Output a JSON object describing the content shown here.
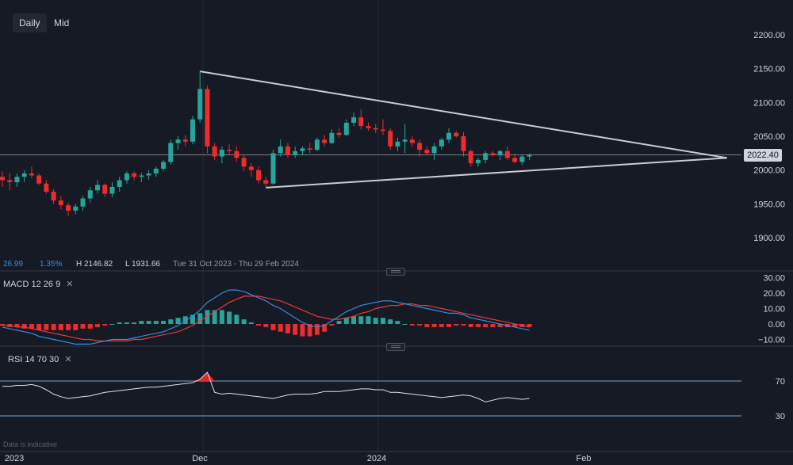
{
  "toolbar": {
    "daily_label": "Daily",
    "mid_label": "Mid"
  },
  "stats": {
    "chg": "26.99",
    "chg_pct": "1.35%",
    "high": "H 2146.82",
    "low": "L 1931.66",
    "range": "Tue 31 Oct 2023 - Thu 29 Feb 2024"
  },
  "price_tag": "2022.40",
  "colors": {
    "up": "#26a69a",
    "down": "#ef2b2b",
    "macd_line": "#2f8fe6",
    "signal_line": "#e83a3a",
    "rsi": "#e0e3eb",
    "level": "#6ba9cf",
    "trendline": "#c9ccd3",
    "background": "#161a25"
  },
  "indicators": {
    "macd": {
      "name": "MACD",
      "p1": "12",
      "p2": "26",
      "p3": "9",
      "close": "✕"
    },
    "rsi": {
      "name": "RSI",
      "p1": "14",
      "p2": "70",
      "p3": "30",
      "close": "✕"
    }
  },
  "footnote": "Data is indicative",
  "chart_data": [
    {
      "type": "candlestick",
      "title": "",
      "x_ticks": [
        "2023",
        "Dec",
        "2024",
        "Feb"
      ],
      "y_ticks": [
        2200,
        2150,
        2100,
        2050,
        2000,
        1950,
        1900
      ],
      "y_tick_labels": [
        "2200.00",
        "2150.00",
        "2100.00",
        "2050.00",
        "2000.00",
        "1950.00",
        "1900.00"
      ],
      "ylim": [
        1870,
        2230
      ],
      "last_price": 2022.4,
      "ohlc": [
        [
          1990,
          1998,
          1975,
          1985
        ],
        [
          1985,
          1995,
          1970,
          1982
        ],
        [
          1982,
          1995,
          1975,
          1990
        ],
        [
          1990,
          2000,
          1982,
          1995
        ],
        [
          1995,
          2005,
          1988,
          1992
        ],
        [
          1992,
          1995,
          1978,
          1980
        ],
        [
          1980,
          1985,
          1965,
          1968
        ],
        [
          1968,
          1972,
          1950,
          1955
        ],
        [
          1955,
          1962,
          1942,
          1948
        ],
        [
          1948,
          1952,
          1932,
          1940
        ],
        [
          1940,
          1950,
          1935,
          1946
        ],
        [
          1946,
          1962,
          1940,
          1958
        ],
        [
          1958,
          1975,
          1952,
          1970
        ],
        [
          1970,
          1985,
          1965,
          1978
        ],
        [
          1978,
          1980,
          1960,
          1965
        ],
        [
          1965,
          1982,
          1960,
          1975
        ],
        [
          1975,
          1990,
          1968,
          1985
        ],
        [
          1985,
          1998,
          1980,
          1995
        ],
        [
          1995,
          1998,
          1985,
          1990
        ],
        [
          1990,
          1996,
          1982,
          1992
        ],
        [
          1992,
          2000,
          1986,
          1995
        ],
        [
          1995,
          2005,
          1990,
          2002
        ],
        [
          2002,
          2015,
          1998,
          2012
        ],
        [
          2012,
          2045,
          2008,
          2040
        ],
        [
          2040,
          2050,
          2030,
          2045
        ],
        [
          2045,
          2052,
          2035,
          2042
        ],
        [
          2042,
          2080,
          2038,
          2075
        ],
        [
          2075,
          2146,
          2070,
          2120
        ],
        [
          2120,
          2125,
          2025,
          2035
        ],
        [
          2035,
          2040,
          2015,
          2020
        ],
        [
          2020,
          2035,
          2010,
          2030
        ],
        [
          2030,
          2038,
          2022,
          2028
        ],
        [
          2028,
          2035,
          2012,
          2018
        ],
        [
          2018,
          2022,
          1998,
          2005
        ],
        [
          2005,
          2010,
          1990,
          2000
        ],
        [
          2000,
          2005,
          1980,
          1985
        ],
        [
          1985,
          1990,
          1975,
          1980
        ],
        [
          1980,
          2030,
          1978,
          2025
        ],
        [
          2025,
          2045,
          2020,
          2035
        ],
        [
          2035,
          2040,
          2018,
          2022
        ],
        [
          2022,
          2035,
          2018,
          2028
        ],
        [
          2028,
          2035,
          2022,
          2032
        ],
        [
          2032,
          2040,
          2025,
          2030
        ],
        [
          2030,
          2048,
          2028,
          2045
        ],
        [
          2045,
          2052,
          2035,
          2040
        ],
        [
          2040,
          2060,
          2038,
          2055
        ],
        [
          2055,
          2062,
          2048,
          2052
        ],
        [
          2052,
          2075,
          2050,
          2070
        ],
        [
          2070,
          2085,
          2065,
          2078
        ],
        [
          2078,
          2090,
          2060,
          2065
        ],
        [
          2065,
          2070,
          2058,
          2062
        ],
        [
          2062,
          2068,
          2055,
          2060
        ],
        [
          2060,
          2075,
          2052,
          2058
        ],
        [
          2058,
          2062,
          2030,
          2035
        ],
        [
          2035,
          2048,
          2028,
          2042
        ],
        [
          2042,
          2068,
          2025,
          2045
        ],
        [
          2045,
          2050,
          2035,
          2040
        ],
        [
          2040,
          2045,
          2020,
          2030
        ],
        [
          2030,
          2035,
          2022,
          2025
        ],
        [
          2025,
          2040,
          2015,
          2035
        ],
        [
          2035,
          2048,
          2030,
          2045
        ],
        [
          2045,
          2062,
          2040,
          2055
        ],
        [
          2055,
          2058,
          2048,
          2050
        ],
        [
          2050,
          2056,
          2020,
          2028
        ],
        [
          2028,
          2030,
          2005,
          2010
        ],
        [
          2010,
          2018,
          2005,
          2015
        ],
        [
          2015,
          2028,
          2010,
          2025
        ],
        [
          2025,
          2028,
          2020,
          2022
        ],
        [
          2022,
          2030,
          2015,
          2028
        ],
        [
          2028,
          2035,
          2015,
          2018
        ],
        [
          2018,
          2025,
          2010,
          2012
        ],
        [
          2012,
          2022,
          2008,
          2020
        ],
        [
          2020,
          2025,
          2015,
          2022
        ]
      ],
      "trendlines": [
        {
          "from": [
            27,
            2146
          ],
          "to": [
            99,
            2018
          ]
        },
        {
          "from": [
            36,
            1974
          ],
          "to": [
            99,
            2018
          ]
        }
      ]
    },
    {
      "type": "bar",
      "title": "",
      "name": "MACD",
      "y_ticks": [
        30,
        20,
        10,
        0,
        -10
      ],
      "y_tick_labels": [
        "30.00",
        "20.00",
        "10.00",
        "0.00",
        "−10.00"
      ],
      "ylim": [
        -14,
        34
      ],
      "macd": [
        -2,
        -3,
        -4,
        -5,
        -6,
        -8,
        -9,
        -10,
        -11,
        -12,
        -13,
        -13,
        -13,
        -12,
        -11,
        -10,
        -10,
        -10,
        -9,
        -8,
        -7,
        -6,
        -5,
        -3,
        -1,
        2,
        5,
        9,
        14,
        17,
        20,
        22,
        22,
        21,
        19,
        17,
        15,
        12,
        10,
        7,
        4,
        1,
        -1,
        -2,
        -1,
        2,
        5,
        8,
        10,
        12,
        13,
        14,
        15,
        15,
        14,
        13,
        12,
        11,
        10,
        9,
        8,
        7,
        7,
        6,
        4,
        3,
        2,
        1,
        0,
        -1,
        -2,
        -3,
        -4
      ],
      "signal": [
        -1,
        -1,
        -2,
        -2,
        -3,
        -4,
        -5,
        -6,
        -7,
        -8,
        -9,
        -10,
        -10,
        -11,
        -11,
        -11,
        -11,
        -11,
        -10,
        -10,
        -9,
        -8,
        -7,
        -6,
        -5,
        -3,
        -1,
        2,
        5,
        8,
        11,
        14,
        16,
        18,
        18,
        18,
        17,
        16,
        15,
        13,
        11,
        9,
        7,
        5,
        4,
        3,
        3,
        4,
        5,
        7,
        8,
        10,
        11,
        12,
        12,
        13,
        13,
        12,
        12,
        11,
        10,
        9,
        8,
        7,
        6,
        5,
        4,
        3,
        2,
        1,
        0,
        -1,
        -2
      ],
      "histogram": [
        -1,
        -2,
        -2,
        -3,
        -3,
        -4,
        -4,
        -4,
        -4,
        -4,
        -4,
        -3,
        -3,
        -2,
        -1,
        0,
        1,
        1,
        1,
        2,
        2,
        2,
        2,
        3,
        4,
        5,
        6,
        7,
        9,
        9,
        9,
        8,
        6,
        3,
        1,
        -1,
        -2,
        -4,
        -5,
        -6,
        -7,
        -8,
        -8,
        -7,
        -5,
        -1,
        2,
        4,
        5,
        5,
        5,
        4,
        4,
        3,
        2,
        0,
        -1,
        -1,
        -2,
        -2,
        -2,
        -2,
        -1,
        -1,
        -2,
        -2,
        -2,
        -2,
        -2,
        -2,
        -2,
        -2,
        -2
      ]
    },
    {
      "type": "line",
      "title": "",
      "name": "RSI",
      "y_ticks": [
        70,
        30
      ],
      "y_tick_labels": [
        "70",
        "30"
      ],
      "levels": [
        70,
        30
      ],
      "ylim": [
        20,
        85
      ],
      "values": [
        64,
        64,
        65,
        65,
        66,
        64,
        60,
        55,
        52,
        50,
        51,
        52,
        53,
        55,
        57,
        58,
        59,
        60,
        61,
        62,
        63,
        63,
        64,
        65,
        66,
        67,
        68,
        72,
        80,
        57,
        55,
        56,
        55,
        54,
        53,
        52,
        51,
        50,
        52,
        54,
        55,
        55,
        55,
        56,
        58,
        58,
        58,
        59,
        60,
        61,
        61,
        60,
        60,
        57,
        57,
        56,
        55,
        54,
        53,
        52,
        51,
        52,
        53,
        54,
        53,
        50,
        46,
        48,
        50,
        51,
        50,
        49,
        50
      ]
    }
  ]
}
